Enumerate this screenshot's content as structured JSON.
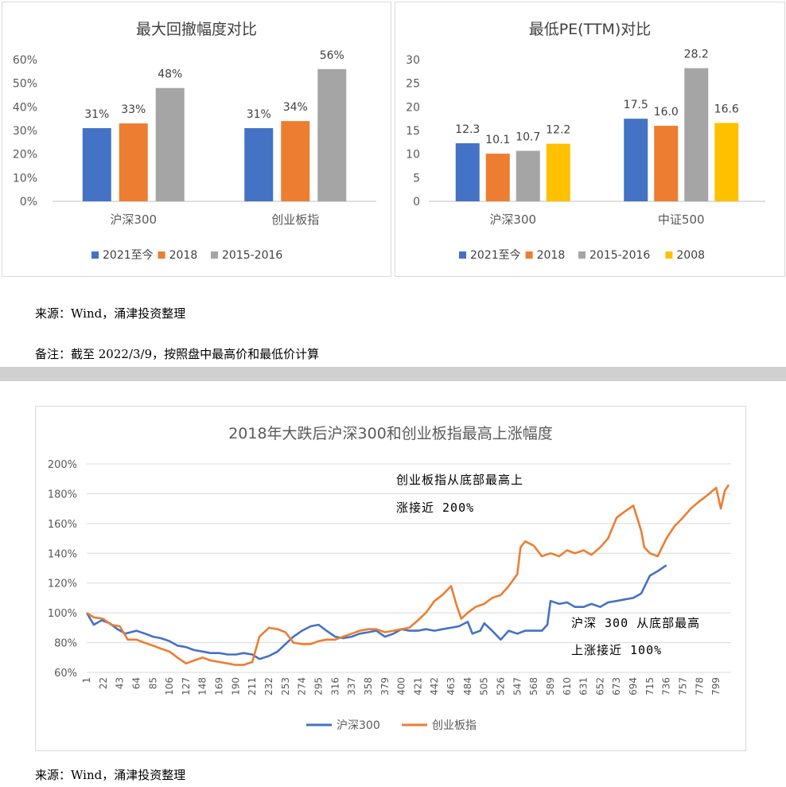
{
  "chart_data": [
    {
      "type": "bar",
      "title": "最大回撤幅度对比",
      "categories": [
        "沪深300",
        "创业板指"
      ],
      "series": [
        {
          "name": "2021至今",
          "values": [
            31,
            31
          ],
          "labels": [
            "31%",
            "31%"
          ],
          "color": "#4472C4"
        },
        {
          "name": "2018",
          "values": [
            33,
            34
          ],
          "labels": [
            "33%",
            "34%"
          ],
          "color": "#ED7D31"
        },
        {
          "name": "2015-2016",
          "values": [
            48,
            56
          ],
          "labels": [
            "48%",
            "56%"
          ],
          "color": "#A5A5A5"
        }
      ],
      "ylim": [
        0,
        60
      ],
      "yticks": [
        "0%",
        "10%",
        "20%",
        "30%",
        "40%",
        "50%",
        "60%"
      ],
      "legend_position": "bottom",
      "grid": false
    },
    {
      "type": "bar",
      "title": "最低PE(TTM)对比",
      "categories": [
        "沪深300",
        "中证500"
      ],
      "series": [
        {
          "name": "2021至今",
          "values": [
            12.3,
            17.5
          ],
          "labels": [
            "12.3",
            "17.5"
          ],
          "color": "#4472C4"
        },
        {
          "name": "2018",
          "values": [
            10.1,
            16.0
          ],
          "labels": [
            "10.1",
            "16.0"
          ],
          "color": "#ED7D31"
        },
        {
          "name": "2015-2016",
          "values": [
            10.7,
            28.2
          ],
          "labels": [
            "10.7",
            "28.2"
          ],
          "color": "#A5A5A5"
        },
        {
          "name": "2008",
          "values": [
            12.2,
            16.6
          ],
          "labels": [
            "12.2",
            "16.6"
          ],
          "color": "#FFC000"
        }
      ],
      "ylim": [
        0,
        30
      ],
      "yticks": [
        "0",
        "5",
        "10",
        "15",
        "20",
        "25",
        "30"
      ],
      "legend_position": "bottom",
      "grid": false
    },
    {
      "type": "line",
      "title": "2018年大跌后沪深300和创业板指最高上涨幅度",
      "xticks": [
        "1",
        "22",
        "43",
        "64",
        "85",
        "106",
        "127",
        "148",
        "169",
        "190",
        "211",
        "232",
        "253",
        "274",
        "295",
        "316",
        "337",
        "358",
        "379",
        "400",
        "421",
        "442",
        "463",
        "484",
        "505",
        "526",
        "547",
        "568",
        "589",
        "610",
        "631",
        "652",
        "673",
        "694",
        "715",
        "736",
        "757",
        "778",
        "799"
      ],
      "ylim": [
        60,
        200
      ],
      "yticks": [
        "60%",
        "80%",
        "100%",
        "120%",
        "140%",
        "160%",
        "180%",
        "200%"
      ],
      "grid": true,
      "legend_position": "bottom",
      "series": [
        {
          "name": "沪深300",
          "color": "#4472C4",
          "x": [
            1,
            10,
            20,
            30,
            40,
            50,
            64,
            75,
            85,
            95,
            106,
            116,
            127,
            137,
            148,
            158,
            169,
            180,
            190,
            200,
            211,
            220,
            232,
            243,
            253,
            263,
            274,
            285,
            295,
            305,
            316,
            326,
            337,
            347,
            358,
            368,
            379,
            390,
            400,
            410,
            421,
            431,
            442,
            452,
            463,
            473,
            484,
            490,
            500,
            505,
            515,
            526,
            536,
            547,
            557,
            568,
            578,
            585,
            589,
            600,
            610,
            620,
            631,
            641,
            652,
            662,
            673,
            683,
            694,
            704,
            715,
            725,
            736
          ],
          "y": [
            100,
            92,
            95,
            93,
            89,
            86,
            88,
            86,
            84,
            83,
            81,
            78,
            77,
            75,
            74,
            73,
            73,
            72,
            72,
            73,
            72,
            69,
            71,
            74,
            79,
            84,
            88,
            91,
            92,
            88,
            84,
            83,
            84,
            86,
            87,
            88,
            84,
            86,
            89,
            88,
            88,
            89,
            88,
            89,
            90,
            91,
            94,
            86,
            88,
            93,
            88,
            82,
            88,
            86,
            88,
            88,
            88,
            92,
            108,
            106,
            107,
            104,
            104,
            106,
            104,
            107,
            108,
            109,
            110,
            113,
            125,
            128,
            132
          ]
        },
        {
          "name": "创业板指",
          "color": "#ED7D31",
          "x": [
            1,
            10,
            22,
            32,
            43,
            53,
            64,
            74,
            85,
            95,
            106,
            116,
            127,
            137,
            148,
            158,
            169,
            180,
            190,
            200,
            211,
            220,
            232,
            243,
            253,
            263,
            274,
            285,
            295,
            305,
            316,
            326,
            337,
            347,
            358,
            368,
            379,
            390,
            400,
            410,
            421,
            431,
            442,
            452,
            463,
            470,
            476,
            484,
            494,
            505,
            515,
            526,
            536,
            547,
            551,
            557,
            568,
            578,
            589,
            600,
            610,
            620,
            631,
            641,
            652,
            662,
            673,
            683,
            694,
            700,
            704,
            708,
            715,
            725,
            736,
            746,
            757,
            767,
            778,
            788,
            799,
            805,
            810,
            815
          ],
          "y": [
            100,
            97,
            96,
            92,
            91,
            82,
            82,
            80,
            78,
            76,
            74,
            70,
            66,
            68,
            70,
            68,
            67,
            66,
            65,
            65,
            67,
            84,
            90,
            89,
            87,
            80,
            79,
            79,
            81,
            82,
            82,
            84,
            86,
            88,
            89,
            89,
            87,
            88,
            89,
            90,
            95,
            100,
            108,
            112,
            118,
            105,
            96,
            100,
            104,
            106,
            110,
            112,
            118,
            126,
            144,
            148,
            145,
            138,
            140,
            138,
            142,
            140,
            142,
            139,
            144,
            150,
            164,
            168,
            172,
            162,
            155,
            144,
            140,
            138,
            150,
            158,
            164,
            170,
            175,
            179,
            184,
            170,
            182,
            186
          ]
        }
      ]
    }
  ],
  "notes": {
    "source_top": "来源：Wind，涌津投资整理",
    "remark": "备注：截至 2022/3/9，按照盘中最高价和最低价计算",
    "source_bottom": "来源：Wind，涌津投资整理"
  },
  "annotations": {
    "cyb_line1": "创业板指从底部最高上",
    "cyb_line2": "涨接近 200%",
    "hs_line1": "沪深 300 从底部最高",
    "hs_line2": "上涨接近 100%"
  }
}
